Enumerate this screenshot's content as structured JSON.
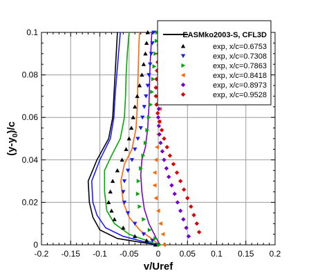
{
  "chart_data": {
    "type": "line",
    "xlabel": "v/Uref",
    "ylabel_parts": [
      "(y-y",
      "0",
      ")/c"
    ],
    "xlim": [
      -0.2,
      0.2
    ],
    "ylim": [
      0,
      0.1
    ],
    "xticks": [
      "-0.2",
      "-0.15",
      "-0.1",
      "-0.05",
      "0",
      "0.05",
      "0.1",
      "0.15",
      "0.2"
    ],
    "yticks": [
      "0",
      "0.02",
      "0.04",
      "0.06",
      "0.08",
      "0.1"
    ],
    "grid": true,
    "legend_position": "top-right",
    "legend": {
      "cfd_label": "EASMko2003-S, CFL3D",
      "exp_labels": [
        "exp, x/c=0.6753",
        "exp, x/c=0.7308",
        "exp, x/c=0.7863",
        "exp, x/c=0.8418",
        "exp, x/c=0.8973",
        "exp, x/c=0.9528"
      ]
    },
    "stations": [
      {
        "x_c": "0.6753",
        "color": "#000000",
        "marker": "triangle-up",
        "cfd": [
          [
            -0.001,
            0.0
          ],
          [
            -0.03,
            0.0012
          ],
          [
            -0.07,
            0.003
          ],
          [
            -0.1,
            0.007
          ],
          [
            -0.112,
            0.013
          ],
          [
            -0.118,
            0.02
          ],
          [
            -0.12,
            0.03
          ],
          [
            -0.105,
            0.04
          ],
          [
            -0.085,
            0.05
          ],
          [
            -0.078,
            0.06
          ],
          [
            -0.076,
            0.07
          ],
          [
            -0.074,
            0.08
          ],
          [
            -0.072,
            0.09
          ],
          [
            -0.07,
            0.1
          ]
        ],
        "exp": [
          [
            -0.005,
            0.0
          ],
          [
            -0.02,
            0.002
          ],
          [
            -0.04,
            0.004
          ],
          [
            -0.06,
            0.008
          ],
          [
            -0.075,
            0.012
          ],
          [
            -0.08,
            0.016
          ],
          [
            -0.085,
            0.02
          ],
          [
            -0.082,
            0.025
          ],
          [
            -0.078,
            0.03
          ],
          [
            -0.07,
            0.035
          ],
          [
            -0.062,
            0.04
          ],
          [
            -0.055,
            0.045
          ],
          [
            -0.05,
            0.05
          ],
          [
            -0.046,
            0.055
          ],
          [
            -0.043,
            0.06
          ],
          [
            -0.04,
            0.065
          ],
          [
            -0.036,
            0.07
          ],
          [
            -0.032,
            0.075
          ],
          [
            -0.028,
            0.08
          ],
          [
            -0.025,
            0.085
          ],
          [
            -0.022,
            0.09
          ],
          [
            -0.02,
            0.095
          ],
          [
            -0.018,
            0.1
          ]
        ]
      },
      {
        "x_c": "0.7308",
        "color": "#1a1aff",
        "marker": "triangle-down",
        "cfd": [
          [
            0.0,
            0.0
          ],
          [
            -0.025,
            0.0015
          ],
          [
            -0.06,
            0.004
          ],
          [
            -0.09,
            0.008
          ],
          [
            -0.105,
            0.014
          ],
          [
            -0.112,
            0.02
          ],
          [
            -0.114,
            0.03
          ],
          [
            -0.1,
            0.04
          ],
          [
            -0.082,
            0.05
          ],
          [
            -0.076,
            0.06
          ],
          [
            -0.074,
            0.07
          ],
          [
            -0.071,
            0.08
          ],
          [
            -0.068,
            0.09
          ],
          [
            -0.065,
            0.1
          ]
        ],
        "exp": [
          [
            0.0,
            0.0
          ],
          [
            -0.01,
            0.002
          ],
          [
            -0.025,
            0.005
          ],
          [
            -0.04,
            0.01
          ],
          [
            -0.052,
            0.015
          ],
          [
            -0.058,
            0.02
          ],
          [
            -0.06,
            0.025
          ],
          [
            -0.058,
            0.03
          ],
          [
            -0.052,
            0.035
          ],
          [
            -0.045,
            0.04
          ],
          [
            -0.04,
            0.045
          ],
          [
            -0.035,
            0.05
          ],
          [
            -0.03,
            0.055
          ],
          [
            -0.027,
            0.06
          ],
          [
            -0.024,
            0.065
          ],
          [
            -0.021,
            0.07
          ],
          [
            -0.018,
            0.075
          ],
          [
            -0.016,
            0.08
          ],
          [
            -0.014,
            0.085
          ],
          [
            -0.012,
            0.09
          ],
          [
            -0.01,
            0.095
          ],
          [
            -0.008,
            0.1
          ]
        ]
      },
      {
        "x_c": "0.7863",
        "color": "#00aa00",
        "marker": "triangle-right",
        "cfd": [
          [
            0.0,
            0.0
          ],
          [
            -0.02,
            0.002
          ],
          [
            -0.05,
            0.005
          ],
          [
            -0.075,
            0.01
          ],
          [
            -0.088,
            0.016
          ],
          [
            -0.092,
            0.025
          ],
          [
            -0.092,
            0.035
          ],
          [
            -0.08,
            0.042
          ],
          [
            -0.065,
            0.05
          ],
          [
            -0.058,
            0.06
          ],
          [
            -0.056,
            0.07
          ],
          [
            -0.055,
            0.08
          ],
          [
            -0.053,
            0.09
          ],
          [
            -0.05,
            0.1
          ]
        ],
        "exp": [
          [
            0.002,
            0.0
          ],
          [
            -0.005,
            0.003
          ],
          [
            -0.015,
            0.007
          ],
          [
            -0.025,
            0.012
          ],
          [
            -0.032,
            0.018
          ],
          [
            -0.035,
            0.024
          ],
          [
            -0.034,
            0.03
          ],
          [
            -0.03,
            0.036
          ],
          [
            -0.026,
            0.042
          ],
          [
            -0.022,
            0.048
          ],
          [
            -0.019,
            0.054
          ],
          [
            -0.016,
            0.06
          ],
          [
            -0.013,
            0.066
          ],
          [
            -0.011,
            0.072
          ],
          [
            -0.009,
            0.078
          ],
          [
            -0.007,
            0.084
          ],
          [
            -0.005,
            0.09
          ],
          [
            -0.003,
            0.096
          ],
          [
            -0.002,
            0.1
          ]
        ]
      },
      {
        "x_c": "0.8418",
        "color": "#ff6600",
        "marker": "triangle-left",
        "cfd": [
          [
            0.002,
            0.0
          ],
          [
            -0.012,
            0.003
          ],
          [
            -0.032,
            0.007
          ],
          [
            -0.05,
            0.013
          ],
          [
            -0.06,
            0.02
          ],
          [
            -0.064,
            0.03
          ],
          [
            -0.058,
            0.038
          ],
          [
            -0.045,
            0.045
          ],
          [
            -0.038,
            0.055
          ],
          [
            -0.036,
            0.065
          ],
          [
            -0.035,
            0.075
          ],
          [
            -0.034,
            0.085
          ],
          [
            -0.033,
            0.095
          ],
          [
            -0.032,
            0.1
          ]
        ],
        "exp": [
          [
            0.01,
            0.0
          ],
          [
            0.008,
            0.005
          ],
          [
            0.004,
            0.01
          ],
          [
            0.0,
            0.016
          ],
          [
            -0.004,
            0.022
          ],
          [
            -0.006,
            0.028
          ],
          [
            -0.006,
            0.034
          ],
          [
            -0.004,
            0.04
          ],
          [
            -0.002,
            0.046
          ],
          [
            0.0,
            0.052
          ],
          [
            0.002,
            0.058
          ],
          [
            0.003,
            0.064
          ],
          [
            0.004,
            0.07
          ],
          [
            0.005,
            0.076
          ],
          [
            0.006,
            0.082
          ],
          [
            0.007,
            0.088
          ],
          [
            0.008,
            0.094
          ],
          [
            0.009,
            0.1
          ]
        ]
      },
      {
        "x_c": "0.8973",
        "color": "#7700cc",
        "marker": "diamond",
        "cfd": [
          [
            0.003,
            0.0
          ],
          [
            -0.005,
            0.004
          ],
          [
            -0.016,
            0.01
          ],
          [
            -0.024,
            0.017
          ],
          [
            -0.028,
            0.025
          ],
          [
            -0.03,
            0.033
          ],
          [
            -0.028,
            0.04
          ],
          [
            -0.022,
            0.046
          ],
          [
            -0.018,
            0.055
          ],
          [
            -0.016,
            0.065
          ],
          [
            -0.015,
            0.075
          ],
          [
            -0.014,
            0.085
          ],
          [
            -0.012,
            0.095
          ],
          [
            -0.011,
            0.1
          ]
        ],
        "exp": [
          [
            0.052,
            0.004
          ],
          [
            0.048,
            0.008
          ],
          [
            0.043,
            0.012
          ],
          [
            0.038,
            0.016
          ],
          [
            0.033,
            0.02
          ],
          [
            0.028,
            0.024
          ],
          [
            0.023,
            0.028
          ],
          [
            0.018,
            0.032
          ],
          [
            0.014,
            0.036
          ],
          [
            0.01,
            0.04
          ],
          [
            0.007,
            0.044
          ],
          [
            0.004,
            0.048
          ],
          [
            0.002,
            0.052
          ],
          [
            0.001,
            0.056
          ],
          [
            0.0,
            0.06
          ],
          [
            0.001,
            0.064
          ],
          [
            0.002,
            0.068
          ],
          [
            0.003,
            0.072
          ],
          [
            0.004,
            0.076
          ],
          [
            0.005,
            0.08
          ],
          [
            0.006,
            0.084
          ],
          [
            0.007,
            0.088
          ],
          [
            0.008,
            0.092
          ],
          [
            0.009,
            0.096
          ],
          [
            0.01,
            0.1
          ]
        ]
      },
      {
        "x_c": "0.9528",
        "color": "#dd0000",
        "marker": "diamond",
        "cfd": [],
        "exp": [
          [
            0.07,
            0.006
          ],
          [
            0.066,
            0.01
          ],
          [
            0.061,
            0.014
          ],
          [
            0.056,
            0.018
          ],
          [
            0.05,
            0.022
          ],
          [
            0.044,
            0.026
          ],
          [
            0.038,
            0.03
          ],
          [
            0.032,
            0.034
          ],
          [
            0.026,
            0.038
          ],
          [
            0.02,
            0.042
          ],
          [
            0.015,
            0.046
          ],
          [
            0.01,
            0.05
          ],
          [
            0.006,
            0.054
          ],
          [
            0.002,
            0.058
          ],
          [
            -0.001,
            0.062
          ],
          [
            -0.003,
            0.066
          ],
          [
            -0.004,
            0.07
          ],
          [
            -0.004,
            0.074
          ],
          [
            -0.003,
            0.078
          ],
          [
            -0.002,
            0.082
          ],
          [
            -0.001,
            0.086
          ],
          [
            0.0,
            0.09
          ],
          [
            0.001,
            0.094
          ],
          [
            0.002,
            0.098
          ]
        ]
      }
    ]
  }
}
